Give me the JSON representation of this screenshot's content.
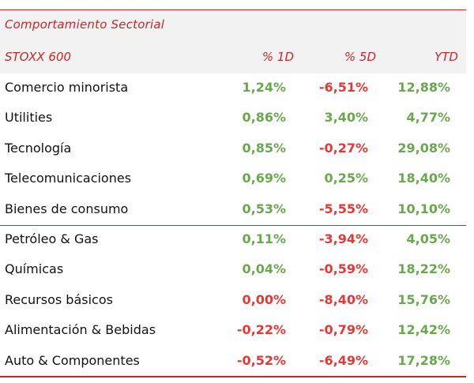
{
  "table": {
    "title": "Comportamiento Sectorial",
    "columns": [
      "STOXX 600",
      "% 1D",
      "% 5D",
      "YTD"
    ],
    "rows": [
      {
        "name": "Comercio minorista",
        "d1": "1,24%",
        "d5": "-6,51%",
        "ytd": "12,88%"
      },
      {
        "name": "Utilities",
        "d1": "0,86%",
        "d5": "3,40%",
        "ytd": "4,77%"
      },
      {
        "name": "Tecnología",
        "d1": "0,85%",
        "d5": "-0,27%",
        "ytd": "29,08%"
      },
      {
        "name": "Telecomunicaciones",
        "d1": "0,69%",
        "d5": "0,25%",
        "ytd": "18,40%"
      },
      {
        "name": "Bienes de consumo",
        "d1": "0,53%",
        "d5": "-5,55%",
        "ytd": "10,10%"
      },
      {
        "name": "Petróleo & Gas",
        "d1": "0,11%",
        "d5": "-3,94%",
        "ytd": "4,05%"
      },
      {
        "name": "Químicas",
        "d1": "0,04%",
        "d5": "-0,59%",
        "ytd": "18,22%"
      },
      {
        "name": "Recursos básicos",
        "d1": "0,00%",
        "d5": "-8,40%",
        "ytd": "15,76%"
      },
      {
        "name": "Alimentación & Bebidas",
        "d1": "-0,22%",
        "d5": "-0,79%",
        "ytd": "12,42%"
      },
      {
        "name": "Auto & Componentes",
        "d1": "-0,52%",
        "d5": "-6,49%",
        "ytd": "17,28%"
      }
    ]
  },
  "colors": {
    "accent": "#c62828",
    "positive": "#6aa84f",
    "negative": "#e53935",
    "zero": "#e53935",
    "header_bg": "#f2f2f2"
  }
}
